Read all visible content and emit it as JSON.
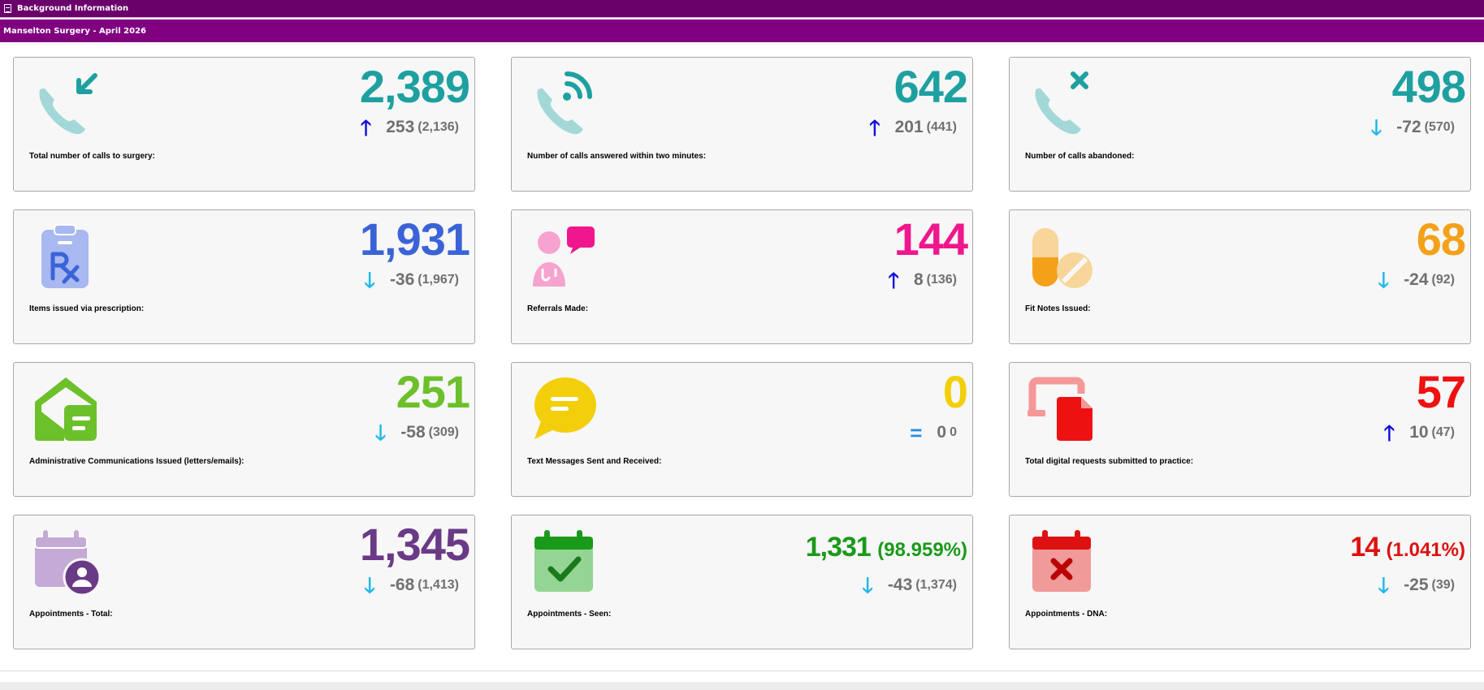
{
  "window": {
    "title": "Background Information"
  },
  "header": {
    "subtitle": "Manselton Surgery - April 2026"
  },
  "cards": [
    {
      "label": "Total number of calls to surgery:",
      "value": "2,389",
      "trend": "up",
      "delta": "253",
      "previous": "(2,136)",
      "color": "#1ea0a0",
      "icon": "phone-incoming-icon"
    },
    {
      "label": "Number of calls answered within two minutes:",
      "value": "642",
      "trend": "up",
      "delta": "201",
      "previous": "(441)",
      "color": "#1ea0a0",
      "icon": "phone-answered-icon"
    },
    {
      "label": "Number of calls abandoned:",
      "value": "498",
      "trend": "down",
      "delta": "-72",
      "previous": "(570)",
      "color": "#1ea0a0",
      "icon": "phone-missed-icon"
    },
    {
      "label": "Items issued via prescription:",
      "value": "1,931",
      "trend": "down",
      "delta": "-36",
      "previous": "(1,967)",
      "color": "#3b63d8",
      "icon": "prescription-icon"
    },
    {
      "label": "Referrals Made:",
      "value": "144",
      "trend": "up",
      "delta": "8",
      "previous": "(136)",
      "color": "#f0168c",
      "icon": "doctor-consult-icon"
    },
    {
      "label": "Fit Notes Issued:",
      "value": "68",
      "trend": "down",
      "delta": "-24",
      "previous": "(92)",
      "color": "#f4a11a",
      "icon": "pills-icon"
    },
    {
      "label": "Administrative Communications Issued (letters/emails):",
      "value": "251",
      "trend": "down",
      "delta": "-58",
      "previous": "(309)",
      "color": "#6cc02a",
      "icon": "envelope-open-icon"
    },
    {
      "label": "Text Messages Sent and Received:",
      "value": "0",
      "trend": "same",
      "delta": "0",
      "previous": "0",
      "color": "#f2cf0a",
      "icon": "chat-bubble-icon"
    },
    {
      "label": "Total digital requests submitted to practice:",
      "value": "57",
      "trend": "up",
      "delta": "10",
      "previous": "(47)",
      "color": "#ee1111",
      "icon": "digital-request-icon"
    },
    {
      "label": "Appointments - Total:",
      "value": "1,345",
      "trend": "down",
      "delta": "-68",
      "previous": "(1,413)",
      "color": "#6a3a86",
      "icon": "calendar-user-icon"
    },
    {
      "label": "Appointments - Seen:",
      "value": "1,331",
      "value_pct": "(98.959%)",
      "trend": "down",
      "delta": "-43",
      "previous": "(1,374)",
      "color": "#1a9a1a",
      "icon": "calendar-check-icon"
    },
    {
      "label": "Appointments - DNA:",
      "value": "14",
      "value_pct": "(1.041%)",
      "trend": "down",
      "delta": "-25",
      "previous": "(39)",
      "color": "#dd1111",
      "icon": "calendar-x-icon"
    }
  ],
  "trend_glyphs": {
    "up": "🡑",
    "down": "🡓",
    "same": "="
  }
}
